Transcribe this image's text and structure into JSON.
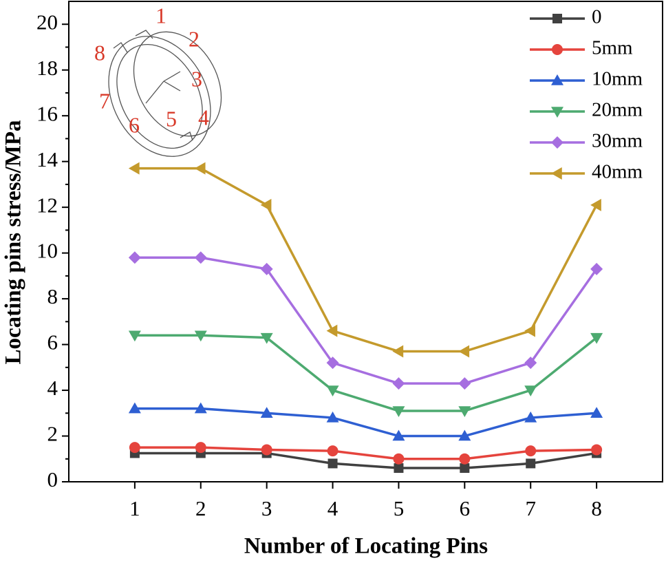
{
  "chart_data": {
    "type": "line",
    "x_label": "Number of Locating Pins",
    "y_label": "Locating pins stress/MPa",
    "x": [
      1,
      2,
      3,
      4,
      5,
      6,
      7,
      8
    ],
    "xlim": [
      0,
      9
    ],
    "xticks": [
      1,
      2,
      3,
      4,
      5,
      6,
      7,
      8
    ],
    "ylim": [
      0,
      21
    ],
    "yticks": [
      0,
      2,
      4,
      6,
      8,
      10,
      12,
      14,
      16,
      18,
      20
    ],
    "legend": "upper right",
    "inset_labels": [
      "1",
      "2",
      "3",
      "4",
      "5",
      "6",
      "7",
      "8"
    ],
    "series": [
      {
        "name": "0",
        "color": "#404040",
        "marker": "square",
        "values": [
          1.25,
          1.25,
          1.25,
          0.8,
          0.6,
          0.6,
          0.8,
          1.25
        ]
      },
      {
        "name": "5mm",
        "color": "#e5443d",
        "marker": "circle",
        "values": [
          1.5,
          1.5,
          1.4,
          1.35,
          1.0,
          1.0,
          1.35,
          1.4
        ]
      },
      {
        "name": "10mm",
        "color": "#2e5fd2",
        "marker": "triangle-up",
        "values": [
          3.2,
          3.2,
          3.0,
          2.8,
          2.0,
          2.0,
          2.8,
          3.0
        ]
      },
      {
        "name": "20mm",
        "color": "#4daa70",
        "marker": "triangle-down",
        "values": [
          6.4,
          6.4,
          6.3,
          4.0,
          3.1,
          3.1,
          4.0,
          6.3
        ]
      },
      {
        "name": "30mm",
        "color": "#a66ee0",
        "marker": "diamond",
        "values": [
          9.8,
          9.8,
          9.3,
          5.2,
          4.3,
          4.3,
          5.2,
          9.3
        ]
      },
      {
        "name": "40mm",
        "color": "#c49a2c",
        "marker": "triangle-left",
        "values": [
          13.7,
          13.7,
          12.1,
          6.6,
          5.7,
          5.7,
          6.6,
          12.1
        ]
      }
    ]
  }
}
